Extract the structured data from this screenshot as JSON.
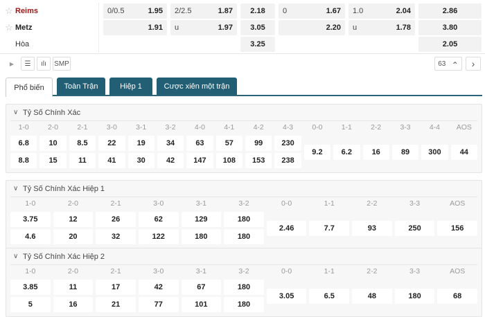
{
  "match": {
    "rows": [
      {
        "star": "☆",
        "team": "Reims",
        "color": "#a31515",
        "cells": [
          [
            "0/0.5",
            "1.95"
          ],
          [
            "2/2.5",
            "1.87"
          ],
          [
            "",
            "2.18"
          ],
          [
            "0",
            "1.67"
          ],
          [
            "1.0",
            "2.04"
          ],
          [
            "",
            "2.86"
          ]
        ]
      },
      {
        "star": "☆",
        "team": "Metz",
        "color": "#222222",
        "cells": [
          [
            "",
            "1.91"
          ],
          [
            "u",
            "1.97"
          ],
          [
            "",
            "3.05"
          ],
          [
            "",
            "2.20"
          ],
          [
            "u",
            "1.78"
          ],
          [
            "",
            "3.80"
          ]
        ]
      },
      {
        "star": "",
        "team": "Hòa",
        "color": "#333333",
        "cells": [
          null,
          null,
          [
            "",
            "3.25"
          ],
          null,
          null,
          [
            "",
            "2.05"
          ]
        ]
      }
    ]
  },
  "toolbar": {
    "play_icon": "▶",
    "smp": "SMP",
    "count": "63",
    "up": "⌃",
    "next": "›"
  },
  "tabs": [
    {
      "label": "Phổ biến",
      "active": true
    },
    {
      "label": "Toàn Trận"
    },
    {
      "label": "Hiệp 1"
    },
    {
      "label": "Cược xiên một trận"
    }
  ],
  "sections": [
    {
      "title": "Tỷ Số Chính Xác",
      "win_headers": [
        "1-0",
        "2-0",
        "2-1",
        "3-0",
        "3-1",
        "3-2",
        "4-0",
        "4-1",
        "4-2",
        "4-3"
      ],
      "home": [
        "6.8",
        "10",
        "8.5",
        "22",
        "19",
        "34",
        "63",
        "57",
        "99",
        "230"
      ],
      "away": [
        "8.8",
        "15",
        "11",
        "41",
        "30",
        "42",
        "147",
        "108",
        "153",
        "238"
      ],
      "draw_headers": [
        "0-0",
        "1-1",
        "2-2",
        "3-3",
        "4-4",
        "AOS"
      ],
      "draw": [
        "9.2",
        "6.2",
        "16",
        "89",
        "300",
        "44"
      ]
    },
    {
      "title": "Tỷ Số Chính Xác Hiệp 1",
      "win_headers": [
        "1-0",
        "2-0",
        "2-1",
        "3-0",
        "3-1",
        "3-2"
      ],
      "home": [
        "3.75",
        "12",
        "26",
        "62",
        "129",
        "180"
      ],
      "away": [
        "4.6",
        "20",
        "32",
        "122",
        "180",
        "180"
      ],
      "draw_headers": [
        "0-0",
        "1-1",
        "2-2",
        "3-3",
        "AOS"
      ],
      "draw": [
        "2.46",
        "7.7",
        "93",
        "250",
        "156"
      ]
    },
    {
      "title": "Tỷ Số Chính Xác Hiệp 2",
      "win_headers": [
        "1-0",
        "2-0",
        "2-1",
        "3-0",
        "3-1",
        "3-2"
      ],
      "home": [
        "3.85",
        "11",
        "17",
        "42",
        "67",
        "180"
      ],
      "away": [
        "5",
        "16",
        "21",
        "77",
        "101",
        "180"
      ],
      "draw_headers": [
        "0-0",
        "1-1",
        "2-2",
        "3-3",
        "AOS"
      ],
      "draw": [
        "3.05",
        "6.5",
        "48",
        "180",
        "68"
      ]
    }
  ]
}
